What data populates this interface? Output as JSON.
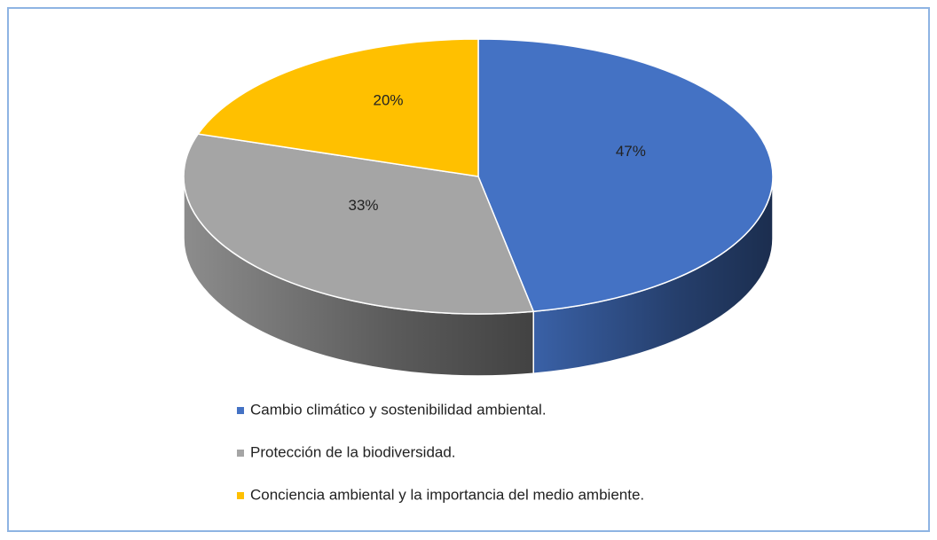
{
  "chart_data": {
    "type": "pie",
    "categories": [
      "Cambio climático y sostenibilidad ambiental.",
      "Protección de la biodiversidad.",
      "Conciencia ambiental y la importancia del medio ambiente."
    ],
    "values": [
      47,
      33,
      20
    ],
    "value_labels": [
      "47%",
      "33%",
      "20%"
    ],
    "colors": [
      "#4472c4",
      "#a5a5a5",
      "#ffc000"
    ],
    "legend": "bottom"
  }
}
